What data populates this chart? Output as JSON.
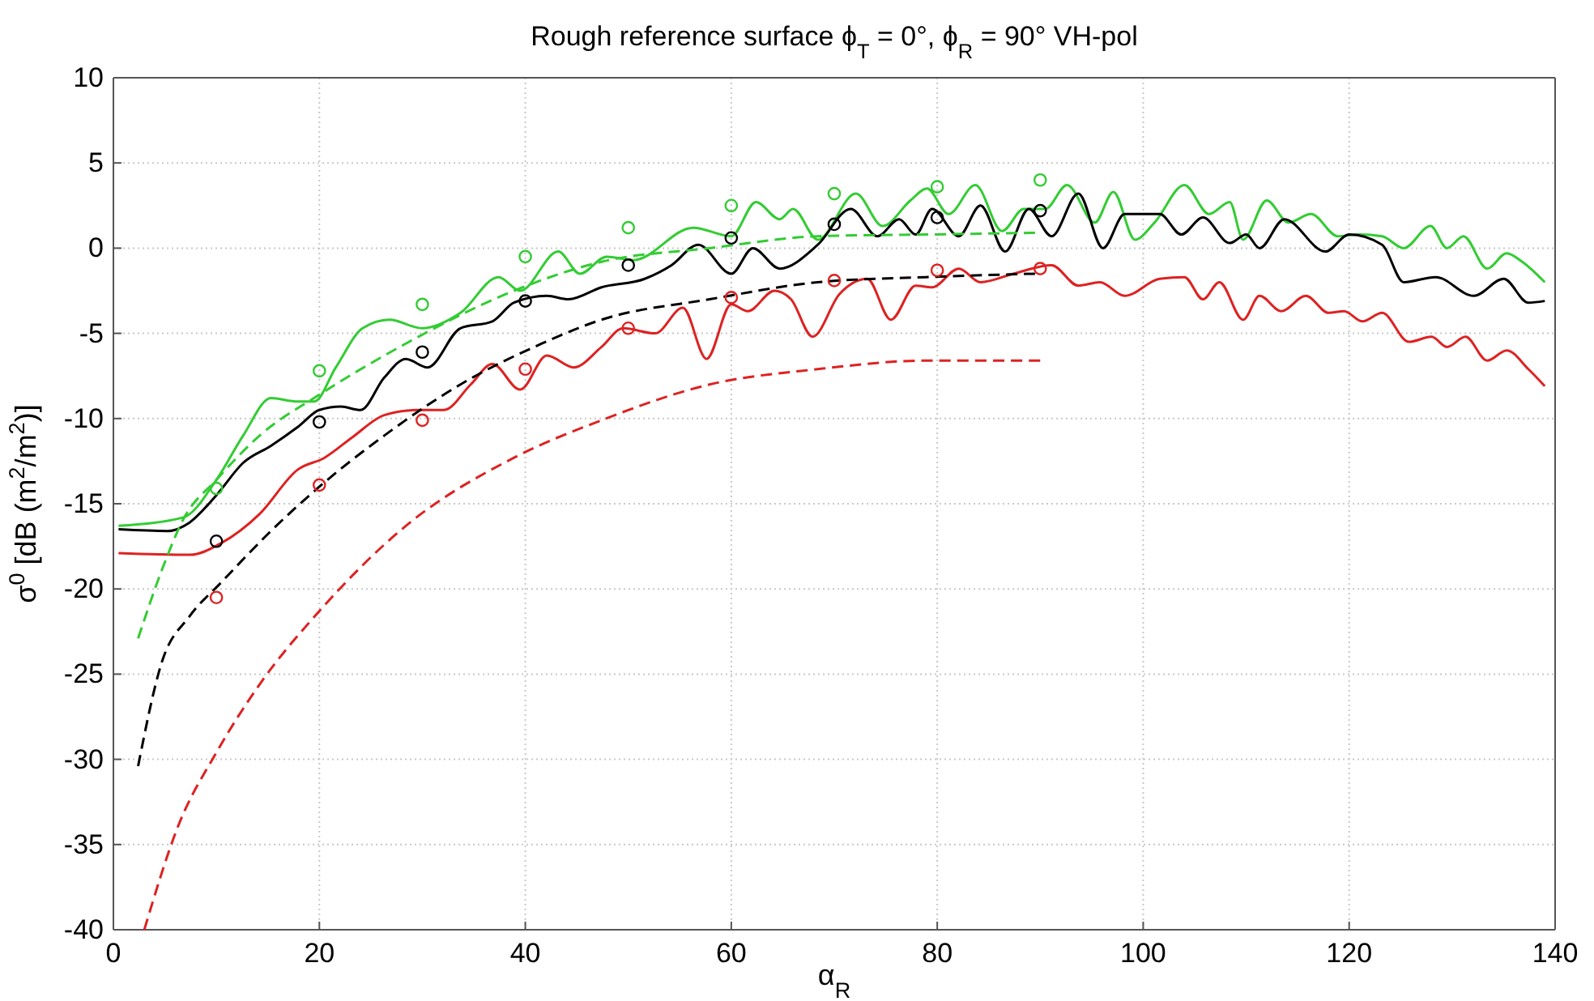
{
  "chart_data": {
    "type": "line",
    "title": "Rough reference surface ϕ$_{T}$ = 0°, ϕ$_{R}$ = 90°  VH-pol",
    "xlabel": "α$_{R}$",
    "ylabel": "σ$^{0}$ [dB (m$^{2}$/m$^{2}$)]",
    "xlim": [
      0,
      140
    ],
    "xticks": [
      0,
      20,
      40,
      60,
      80,
      100,
      120,
      140
    ],
    "ylim": [
      -40,
      10
    ],
    "yticks": [
      -40,
      -35,
      -30,
      -25,
      -20,
      -15,
      -10,
      -5,
      0,
      5,
      10
    ],
    "grid": true,
    "series": [
      {
        "color": "#33cc33",
        "line_style": "solid",
        "marker": "none",
        "x": [
          0.5,
          6.8,
          10,
          12.6,
          15.3,
          17.9,
          19.5,
          21.6,
          24.2,
          26.8,
          30,
          33.7,
          37.4,
          39.5,
          43.2,
          45.3,
          47.9,
          50.5,
          56.3,
          60,
          62.4,
          64.7,
          66,
          68.4,
          72.1,
          74.7,
          77.4,
          79,
          81.1,
          83.7,
          86.3,
          88.4,
          90.5,
          92.6,
          95.3,
          97.1,
          99.2,
          101.1,
          104,
          106.4,
          108.4,
          109.7,
          112,
          114.1,
          116.3,
          118.9,
          121,
          123.2,
          125.3,
          127.9,
          129.5,
          131.1,
          133.4,
          135.3,
          136.8,
          139
        ],
        "values": [
          -16.3,
          -15.8,
          -13.6,
          -11,
          -8.8,
          -9,
          -9,
          -7,
          -4.7,
          -4.2,
          -4.7,
          -3.8,
          -1.7,
          -2.5,
          -0.2,
          -1.5,
          -0.5,
          -0.7,
          1.2,
          0.7,
          2.7,
          1.7,
          2.3,
          0.5,
          3.2,
          1.3,
          2.8,
          3.5,
          2,
          3.7,
          1,
          2.3,
          2.3,
          3.7,
          1.5,
          3.3,
          0.5,
          1.5,
          3.7,
          2,
          2.7,
          0.5,
          2.8,
          1.5,
          2,
          0.7,
          0.8,
          0.7,
          0,
          1.3,
          0,
          0.7,
          -1.2,
          -0.3,
          -0.8,
          -2
        ]
      },
      {
        "color": "#000000",
        "line_style": "solid",
        "marker": "none",
        "x": [
          0.5,
          5.3,
          7.4,
          10,
          12.6,
          15.3,
          17.9,
          20,
          22.1,
          24,
          26.3,
          28.4,
          30.5,
          33.7,
          36.8,
          38.9,
          42.1,
          44.2,
          47.4,
          51.6,
          54.2,
          56.8,
          60,
          62.1,
          64.7,
          68.4,
          71.6,
          74.2,
          76.3,
          77.9,
          79.5,
          82.1,
          84.2,
          86.6,
          88.9,
          91.1,
          93.7,
          96.1,
          98.2,
          101.6,
          103.7,
          105.8,
          108.4,
          110,
          111.3,
          113.7,
          117.7,
          120,
          123.2,
          125.3,
          128.4,
          132.1,
          135,
          137.4,
          139
        ],
        "values": [
          -16.5,
          -16.6,
          -16.1,
          -14.5,
          -12.6,
          -11.6,
          -10.5,
          -9.5,
          -9.3,
          -9.5,
          -7.6,
          -6.5,
          -7,
          -4.7,
          -4.3,
          -3.2,
          -2.8,
          -3,
          -2.3,
          -1.8,
          -1,
          0.2,
          -1.5,
          0,
          -1.2,
          0.2,
          2.3,
          0.7,
          1.7,
          0.8,
          2.3,
          0.7,
          2.5,
          -0.2,
          2.3,
          0.7,
          3.2,
          0,
          2,
          2,
          0.8,
          1.8,
          0.3,
          0.8,
          0,
          1.7,
          -0.2,
          0.8,
          0.2,
          -2,
          -1.7,
          -2.8,
          -1.8,
          -3.2,
          -3.1
        ]
      },
      {
        "color": "#dd2222",
        "line_style": "solid",
        "marker": "none",
        "x": [
          0.5,
          7.4,
          10.5,
          14.2,
          17.9,
          20.5,
          23.2,
          26.3,
          29.5,
          32.1,
          34.7,
          36.8,
          39.5,
          42.1,
          44.7,
          47.4,
          49.5,
          52.6,
          55.3,
          57.6,
          60,
          61.6,
          64.2,
          65.8,
          67.9,
          70.5,
          73.2,
          75.5,
          77.9,
          79.5,
          82.1,
          84.2,
          87.4,
          91.1,
          93.7,
          95.8,
          98.2,
          101.6,
          104,
          105.8,
          107.4,
          109.7,
          111.3,
          113.4,
          115.8,
          118,
          119.5,
          121.3,
          123.2,
          125.8,
          128,
          129.5,
          131.3,
          133.4,
          135.3,
          137.4,
          139
        ],
        "values": [
          -17.9,
          -18,
          -17.3,
          -15.6,
          -13,
          -12.3,
          -11.1,
          -9.8,
          -9.5,
          -9.5,
          -8,
          -6.8,
          -8.3,
          -6.3,
          -7,
          -5.8,
          -4.7,
          -5,
          -3.5,
          -6.5,
          -3.3,
          -3.7,
          -2.5,
          -3,
          -5.2,
          -2.7,
          -1.8,
          -4.2,
          -2.2,
          -2.3,
          -1.2,
          -2,
          -1.5,
          -1,
          -2.2,
          -2,
          -2.8,
          -1.8,
          -1.7,
          -3,
          -2,
          -4.2,
          -2.8,
          -3.7,
          -2.8,
          -3.8,
          -3.7,
          -4.3,
          -3.8,
          -5.5,
          -5.2,
          -5.8,
          -5.2,
          -6.6,
          -6,
          -7.1,
          -8.1
        ]
      },
      {
        "color": "#33cc33",
        "line_style": "dashed",
        "marker": "none",
        "x": [
          2.4,
          4.7,
          6.8,
          10,
          14.2,
          20,
          28.4,
          38.9,
          47.4,
          57.9,
          68.4,
          78.9,
          89.5
        ],
        "values": [
          -22.9,
          -18.9,
          -15.9,
          -13.6,
          -11,
          -8.6,
          -5.6,
          -2.5,
          -0.8,
          0,
          0.7,
          0.8,
          0.9
        ]
      },
      {
        "color": "#000000",
        "line_style": "dashed",
        "marker": "none",
        "x": [
          2.4,
          4.7,
          7.4,
          10.5,
          15.3,
          20,
          26.3,
          33.7,
          41.6,
          47.4,
          57.9,
          68.4,
          78.9,
          89.5
        ],
        "values": [
          -30.4,
          -24.3,
          -21.6,
          -19.6,
          -16.6,
          -14,
          -11,
          -8,
          -5.6,
          -4.2,
          -3,
          -2,
          -1.7,
          -1.5
        ]
      },
      {
        "color": "#dd2222",
        "line_style": "dashed",
        "marker": "none",
        "x": [
          3,
          6.3,
          10,
          14.2,
          20,
          28.4,
          38.9,
          47.4,
          57.9,
          68.4,
          78.9,
          90
        ],
        "values": [
          -40,
          -33.9,
          -29.6,
          -25.6,
          -21.3,
          -16.3,
          -12.3,
          -10.1,
          -8,
          -7.1,
          -6.6,
          -6.6
        ]
      },
      {
        "type": "scatter",
        "color": "#33cc33",
        "marker": "circle",
        "x": [
          10,
          20,
          30,
          40,
          50,
          60,
          70,
          80,
          90
        ],
        "values": [
          -14.1,
          -7.2,
          -3.3,
          -0.5,
          1.2,
          2.5,
          3.2,
          3.6,
          4
        ]
      },
      {
        "type": "scatter",
        "color": "#000000",
        "marker": "circle",
        "x": [
          10,
          20,
          30,
          40,
          50,
          60,
          70,
          80,
          90
        ],
        "values": [
          -17.2,
          -10.2,
          -6.1,
          -3.1,
          -1,
          0.6,
          1.4,
          1.8,
          2.2
        ]
      },
      {
        "type": "scatter",
        "color": "#dd2222",
        "marker": "circle",
        "x": [
          10,
          20,
          30,
          40,
          50,
          60,
          70,
          80,
          90
        ],
        "values": [
          -20.5,
          -13.9,
          -10.1,
          -7.1,
          -4.7,
          -2.9,
          -1.9,
          -1.3,
          -1.2
        ]
      }
    ]
  }
}
